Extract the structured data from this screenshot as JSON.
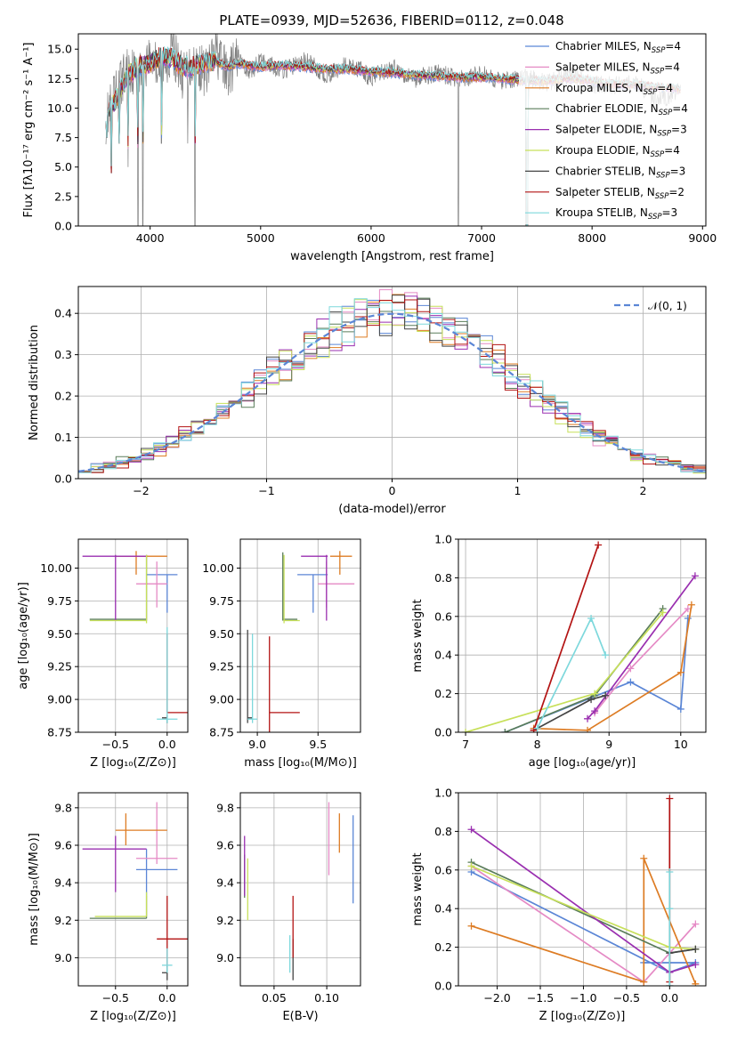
{
  "title": "PLATE=0939, MJD=52636, FIBERID=0112, z=0.048",
  "colors": [
    "#5b86d6",
    "#e58ac5",
    "#dd7c24",
    "#5a7d5a",
    "#9a2fb0",
    "#c7e05a",
    "#444444",
    "#b31313",
    "#7dd8dc"
  ],
  "legend": [
    {
      "name": "Chabrier MILES, N",
      "sub": "SSP",
      "eq": "=4"
    },
    {
      "name": "Salpeter MILES, N",
      "sub": "SSP",
      "eq": "=4"
    },
    {
      "name": "Kroupa MILES, N",
      "sub": "SSP",
      "eq": "=4"
    },
    {
      "name": "Chabrier ELODIE, N",
      "sub": "SSP",
      "eq": "=4"
    },
    {
      "name": "Salpeter ELODIE, N",
      "sub": "SSP",
      "eq": "=3"
    },
    {
      "name": "Kroupa ELODIE, N",
      "sub": "SSP",
      "eq": "=4"
    },
    {
      "name": "Chabrier STELIB, N",
      "sub": "SSP",
      "eq": "=3"
    },
    {
      "name": "Salpeter STELIB, N",
      "sub": "SSP",
      "eq": "=2"
    },
    {
      "name": "Kroupa STELIB, N",
      "sub": "SSP",
      "eq": "=3"
    }
  ],
  "chart_data": [
    {
      "type": "line",
      "panel": "spectrum",
      "xlabel": "wavelength [Angstrom, rest frame]",
      "ylabel": "Flux [fλ10⁻¹⁷ erg cm⁻² s⁻¹ A⁻¹]",
      "xlim": [
        3350,
        9030
      ],
      "ylim": [
        0,
        16.3
      ],
      "xticks": [
        4000,
        5000,
        6000,
        7000,
        8000,
        9000
      ],
      "yticks": [
        0.0,
        2.5,
        5.0,
        7.5,
        10.0,
        12.5,
        15.0
      ],
      "xdata": [
        3600,
        3700,
        3800,
        3900,
        4000,
        4100,
        4200,
        4300,
        4400,
        4500,
        4600,
        4700,
        4800,
        4900,
        5000,
        5200,
        5400,
        5600,
        5800,
        6000,
        6200,
        6400,
        6600,
        6800,
        7000,
        7200,
        7400,
        7600,
        7800,
        8000,
        8200,
        8400,
        8600,
        8800
      ],
      "model_flux": [
        9.5,
        10.8,
        12.8,
        13.6,
        13.8,
        14.4,
        14.2,
        13.4,
        13.5,
        13.9,
        13.9,
        13.5,
        13.8,
        13.6,
        13.5,
        13.6,
        13.5,
        13.3,
        13.3,
        13.1,
        13.0,
        12.8,
        12.7,
        12.6,
        12.6,
        12.5,
        12.3,
        12.3,
        12.5,
        12.3,
        12.0,
        12.0,
        11.8,
        11.6
      ],
      "data_flux": [
        9.0,
        11.5,
        13.5,
        12.8,
        14.5,
        13.2,
        15.0,
        12.6,
        14.0,
        13.0,
        14.8,
        12.8,
        14.2,
        13.0,
        14.0,
        13.2,
        14.0,
        12.8,
        13.8,
        12.6,
        13.4,
        12.5,
        13.0,
        12.4,
        12.9,
        12.2,
        12.6,
        12.1,
        12.8,
        12.0,
        11.9,
        12.2,
        10.5,
        11.8
      ],
      "absorption_lines": [
        3610,
        3650,
        3720,
        3800,
        3889,
        3934,
        4101,
        4340,
        4405,
        6790,
        7400
      ],
      "absorption_depths": [
        7.5,
        4.5,
        7.0,
        5.0,
        0.0,
        0.0,
        7.0,
        7.0,
        0.0,
        0.0,
        0.0
      ]
    },
    {
      "type": "histogram",
      "panel": "residuals",
      "xlabel": "(data-model)/error",
      "ylabel": "Normed distribution",
      "xlim": [
        -2.5,
        2.5
      ],
      "ylim": [
        0,
        0.465
      ],
      "xticks": [
        -2,
        -1,
        0,
        1,
        2
      ],
      "yticks": [
        0.0,
        0.1,
        0.2,
        0.3,
        0.4
      ],
      "bin_width": 0.1,
      "legend_name": "𝒩(0, 1)"
    },
    {
      "type": "errorbar",
      "panel": "age-vs-Z",
      "xlabel": "Z [log₁₀(Z/Z⊙)]",
      "ylabel": "age  [log₁₀(age/yr)]",
      "xlim": [
        -0.86,
        0.2
      ],
      "ylim": [
        8.75,
        10.22
      ],
      "xticks": [
        -0.5,
        0.0
      ],
      "yticks": [
        8.75,
        9.0,
        9.25,
        9.5,
        9.75,
        10.0
      ],
      "points": [
        {
          "x": 0.0,
          "y": 9.95,
          "xlo": -0.2,
          "xhi": 0.1,
          "ylo": 9.66,
          "yhi": 9.95
        },
        {
          "x": -0.1,
          "y": 9.88,
          "xlo": -0.3,
          "xhi": 0.0,
          "ylo": 9.7,
          "yhi": 10.05
        },
        {
          "x": -0.3,
          "y": 10.09,
          "xlo": -0.5,
          "xhi": 0.0,
          "ylo": 9.95,
          "yhi": 10.13
        },
        {
          "x": -0.2,
          "y": 9.61,
          "xlo": -0.75,
          "xhi": -0.2,
          "ylo": 9.6,
          "yhi": 10.1
        },
        {
          "x": -0.5,
          "y": 10.09,
          "xlo": -0.82,
          "xhi": -0.2,
          "ylo": 9.6,
          "yhi": 10.1
        },
        {
          "x": -0.2,
          "y": 9.6,
          "xlo": -0.75,
          "xhi": -0.2,
          "ylo": 9.58,
          "yhi": 10.1
        },
        {
          "x": 0.0,
          "y": 8.86,
          "xlo": -0.05,
          "xhi": 0.0,
          "ylo": 8.82,
          "yhi": 8.88
        },
        {
          "x": 0.0,
          "y": 8.9,
          "xlo": 0.0,
          "xhi": 0.2,
          "ylo": 8.9,
          "yhi": 9.5
        },
        {
          "x": 0.0,
          "y": 8.85,
          "xlo": -0.1,
          "xhi": 0.1,
          "ylo": 8.82,
          "yhi": 9.55
        }
      ]
    },
    {
      "type": "errorbar",
      "panel": "age-vs-mass",
      "xlabel": "mass [log₁₀(M/M⊙)]",
      "ylabel": "",
      "xlim": [
        8.86,
        9.85
      ],
      "ylim": [
        8.75,
        10.22
      ],
      "xticks": [
        9.0,
        9.5
      ],
      "yticks": [
        8.75,
        9.0,
        9.25,
        9.5,
        9.75,
        10.0
      ],
      "points": [
        {
          "x": 9.46,
          "y": 9.95,
          "xlo": 9.33,
          "xhi": 9.58,
          "ylo": 9.66,
          "yhi": 9.95
        },
        {
          "x": 9.57,
          "y": 9.88,
          "xlo": 9.5,
          "xhi": 9.8,
          "ylo": 9.7,
          "yhi": 10.05
        },
        {
          "x": 9.68,
          "y": 10.09,
          "xlo": 9.6,
          "xhi": 9.78,
          "ylo": 9.95,
          "yhi": 10.13
        },
        {
          "x": 9.21,
          "y": 9.61,
          "xlo": 9.21,
          "xhi": 9.33,
          "ylo": 9.6,
          "yhi": 10.12
        },
        {
          "x": 9.57,
          "y": 10.09,
          "xlo": 9.36,
          "xhi": 9.58,
          "ylo": 9.6,
          "yhi": 10.1
        },
        {
          "x": 9.22,
          "y": 9.6,
          "xlo": 9.22,
          "xhi": 9.35,
          "ylo": 9.58,
          "yhi": 10.1
        },
        {
          "x": 8.92,
          "y": 8.86,
          "xlo": 8.92,
          "xhi": 8.96,
          "ylo": 8.82,
          "yhi": 9.53
        },
        {
          "x": 9.1,
          "y": 8.9,
          "xlo": 9.1,
          "xhi": 9.35,
          "ylo": 8.68,
          "yhi": 9.48
        },
        {
          "x": 8.96,
          "y": 8.85,
          "xlo": 8.92,
          "xhi": 9.0,
          "ylo": 8.82,
          "yhi": 9.5
        }
      ]
    },
    {
      "type": "line",
      "panel": "mass-weight-vs-age",
      "xlabel": "age  [log₁₀(age/yr)]",
      "ylabel": "mass weight",
      "xlim": [
        6.9,
        10.35
      ],
      "ylim": [
        0,
        1.0
      ],
      "xticks": [
        7,
        8,
        9,
        10
      ],
      "yticks": [
        0.0,
        0.2,
        0.4,
        0.6,
        0.8,
        1.0
      ],
      "series": [
        {
          "points": [
            [
              7.55,
              0.0
            ],
            [
              9.3,
              0.26
            ],
            [
              10.0,
              0.12
            ],
            [
              10.1,
              0.59
            ]
          ]
        },
        {
          "points": [
            [
              8.8,
              0.1
            ],
            [
              9.3,
              0.33
            ],
            [
              10.1,
              0.64
            ]
          ]
        },
        {
          "points": [
            [
              7.95,
              0.02
            ],
            [
              8.7,
              0.01
            ],
            [
              10.0,
              0.31
            ],
            [
              10.15,
              0.66
            ]
          ]
        },
        {
          "points": [
            [
              7.55,
              0.0
            ],
            [
              8.8,
              0.19
            ],
            [
              9.75,
              0.64
            ]
          ]
        },
        {
          "points": [
            [
              8.7,
              0.07
            ],
            [
              8.8,
              0.11
            ],
            [
              10.2,
              0.81
            ]
          ]
        },
        {
          "points": [
            [
              7.0,
              0.0
            ],
            [
              8.8,
              0.2
            ],
            [
              9.75,
              0.62
            ]
          ]
        },
        {
          "points": [
            [
              7.95,
              0.01
            ],
            [
              8.75,
              0.17
            ],
            [
              8.95,
              0.19
            ]
          ]
        },
        {
          "points": [
            [
              7.95,
              0.01
            ],
            [
              8.85,
              0.97
            ]
          ]
        },
        {
          "points": [
            [
              8.0,
              0.02
            ],
            [
              8.75,
              0.59
            ],
            [
              8.95,
              0.4
            ]
          ]
        }
      ]
    },
    {
      "type": "errorbar",
      "panel": "mass-vs-Z",
      "xlabel": "Z [log₁₀(Z/Z⊙)]",
      "ylabel": "mass [log₁₀(M/M⊙)]",
      "xlim": [
        -0.86,
        0.2
      ],
      "ylim": [
        8.85,
        9.88
      ],
      "xticks": [
        -0.5,
        0.0
      ],
      "yticks": [
        9.0,
        9.2,
        9.4,
        9.6,
        9.8
      ],
      "points": [
        {
          "x": -0.2,
          "y": 9.47,
          "xlo": -0.3,
          "xhi": 0.1,
          "ylo": 9.33,
          "yhi": 9.58
        },
        {
          "x": -0.1,
          "y": 9.53,
          "xlo": -0.3,
          "xhi": 0.1,
          "ylo": 9.5,
          "yhi": 9.83
        },
        {
          "x": -0.4,
          "y": 9.68,
          "xlo": -0.5,
          "xhi": 0.0,
          "ylo": 9.6,
          "yhi": 9.77
        },
        {
          "x": -0.2,
          "y": 9.21,
          "xlo": -0.75,
          "xhi": -0.2,
          "ylo": 9.21,
          "yhi": 9.33
        },
        {
          "x": -0.5,
          "y": 9.58,
          "xlo": -0.82,
          "xhi": -0.2,
          "ylo": 9.35,
          "yhi": 9.65
        },
        {
          "x": -0.2,
          "y": 9.22,
          "xlo": -0.7,
          "xhi": -0.2,
          "ylo": 9.22,
          "yhi": 9.35
        },
        {
          "x": 0.0,
          "y": 8.92,
          "xlo": -0.05,
          "xhi": 0.0,
          "ylo": 8.88,
          "yhi": 8.96
        },
        {
          "x": 0.0,
          "y": 9.1,
          "xlo": -0.1,
          "xhi": 0.2,
          "ylo": 8.95,
          "yhi": 9.33
        },
        {
          "x": 0.0,
          "y": 8.96,
          "xlo": -0.05,
          "xhi": 0.05,
          "ylo": 8.92,
          "yhi": 9.05
        }
      ]
    },
    {
      "type": "errorbar",
      "panel": "mass-vs-EBV",
      "xlabel": "E(B-V)",
      "ylabel": "",
      "xlim": [
        0.018,
        0.132
      ],
      "ylim": [
        8.85,
        9.88
      ],
      "xticks": [
        0.05,
        0.1
      ],
      "yticks": [
        9.0,
        9.2,
        9.4,
        9.6,
        9.8
      ],
      "points": [
        {
          "x": 0.125,
          "y": 9.47,
          "ylo": 9.29,
          "yhi": 9.76
        },
        {
          "x": 0.102,
          "y": 9.58,
          "ylo": 9.44,
          "yhi": 9.83
        },
        {
          "x": 0.112,
          "y": 9.65,
          "ylo": 9.56,
          "yhi": 9.77
        },
        {
          "x": 0.022,
          "y": 9.48,
          "ylo": 9.32,
          "yhi": 9.55
        },
        {
          "x": 0.022,
          "y": 9.56,
          "ylo": 9.33,
          "yhi": 9.65
        },
        {
          "x": 0.025,
          "y": 9.4,
          "ylo": 9.2,
          "yhi": 9.53
        },
        {
          "x": 0.068,
          "y": 9.0,
          "ylo": 8.88,
          "yhi": 9.1
        },
        {
          "x": 0.068,
          "y": 9.15,
          "ylo": 9.0,
          "yhi": 9.33
        },
        {
          "x": 0.065,
          "y": 9.0,
          "ylo": 8.92,
          "yhi": 9.12
        }
      ]
    },
    {
      "type": "line",
      "panel": "mass-weight-vs-Z",
      "xlabel": "Z [log₁₀(Z/Z⊙)]",
      "ylabel": "mass weight",
      "xlim": [
        -2.45,
        0.42
      ],
      "ylim": [
        0,
        1.0
      ],
      "xticks": [
        -2.0,
        -1.5,
        -1.0,
        -0.5,
        0.0
      ],
      "yticks": [
        0.0,
        0.2,
        0.4,
        0.6,
        0.8,
        1.0
      ],
      "series": [
        {
          "points": [
            [
              -2.3,
              0.59
            ],
            [
              0.0,
              0.07
            ],
            [
              0.3,
              0.12
            ],
            [
              -0.3,
              0.12
            ]
          ]
        },
        {
          "points": [
            [
              -2.3,
              0.62
            ],
            [
              -0.3,
              0.02
            ],
            [
              0.3,
              0.32
            ]
          ]
        },
        {
          "points": [
            [
              -2.3,
              0.31
            ],
            [
              -0.3,
              0.02
            ],
            [
              -0.3,
              0.66
            ],
            [
              0.3,
              0.01
            ]
          ]
        },
        {
          "points": [
            [
              -2.3,
              0.64
            ],
            [
              0.0,
              0.17
            ],
            [
              0.3,
              0.19
            ]
          ]
        },
        {
          "points": [
            [
              -2.3,
              0.81
            ],
            [
              0.0,
              0.07
            ],
            [
              0.3,
              0.11
            ]
          ]
        },
        {
          "points": [
            [
              -2.3,
              0.62
            ],
            [
              0.0,
              0.2
            ],
            [
              0.3,
              0.19
            ]
          ]
        },
        {
          "points": [
            [
              0.0,
              0.0
            ],
            [
              0.0,
              0.17
            ],
            [
              0.3,
              0.19
            ]
          ]
        },
        {
          "points": [
            [
              0.0,
              0.02
            ],
            [
              0.0,
              0.97
            ]
          ]
        },
        {
          "points": [
            [
              0.0,
              0.0
            ],
            [
              0.0,
              0.59
            ],
            [
              0.0,
              0.4
            ]
          ]
        }
      ]
    }
  ]
}
